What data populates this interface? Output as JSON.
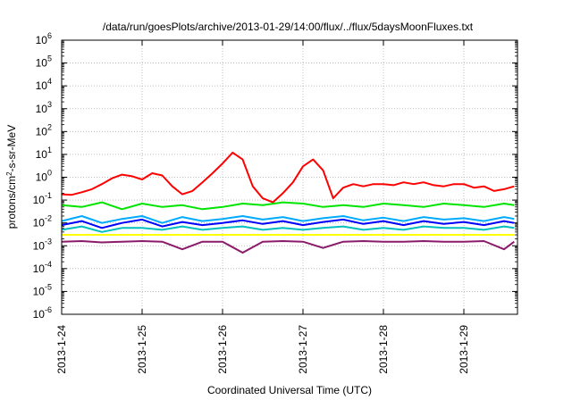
{
  "chart_data": {
    "type": "line",
    "title": "/data/run/goesPlots/archive/2013-01-29/14:00/flux/../flux/5daysMoonFluxes.txt",
    "xlabel": "Coordinated Universal Time (UTC)",
    "ylabel": {
      "pre": "protons/cm",
      "sup": "2",
      "post": "-s-sr-MeV"
    },
    "yscale": "log",
    "ylim": [
      1e-06,
      1000000.0
    ],
    "xlim": [
      "2013-01-24T00:00",
      "2013-01-29T16:00"
    ],
    "grid": true,
    "y_tick_labels": [
      {
        "value": 1e-06,
        "base": "10",
        "exp": "-6"
      },
      {
        "value": 1e-05,
        "base": "10",
        "exp": "-5"
      },
      {
        "value": 0.0001,
        "base": "10",
        "exp": "-4"
      },
      {
        "value": 0.001,
        "base": "10",
        "exp": "-3"
      },
      {
        "value": 0.01,
        "base": "10",
        "exp": "-2"
      },
      {
        "value": 0.1,
        "base": "10",
        "exp": "-1"
      },
      {
        "value": 1.0,
        "base": "10",
        "exp": "0"
      },
      {
        "value": 10.0,
        "base": "10",
        "exp": "1"
      },
      {
        "value": 100.0,
        "base": "10",
        "exp": "2"
      },
      {
        "value": 1000.0,
        "base": "10",
        "exp": "3"
      },
      {
        "value": 10000.0,
        "base": "10",
        "exp": "4"
      },
      {
        "value": 100000.0,
        "base": "10",
        "exp": "5"
      },
      {
        "value": 1000000.0,
        "base": "10",
        "exp": "6"
      }
    ],
    "x_tick_labels": [
      {
        "value": "2013-01-24T00:00",
        "label": "2013-1-24"
      },
      {
        "value": "2013-01-25T00:00",
        "label": "2013-1-25"
      },
      {
        "value": "2013-01-26T00:00",
        "label": "2013-1-26"
      },
      {
        "value": "2013-01-27T00:00",
        "label": "2013-1-27"
      },
      {
        "value": "2013-01-28T00:00",
        "label": "2013-1-28"
      },
      {
        "value": "2013-01-29T00:00",
        "label": "2013-1-29"
      }
    ],
    "series": [
      {
        "color": "#ff0000",
        "x": [
          "2013-01-24T00:00",
          "2013-01-24T03:00",
          "2013-01-24T06:00",
          "2013-01-24T09:00",
          "2013-01-24T12:00",
          "2013-01-24T15:00",
          "2013-01-24T18:00",
          "2013-01-24T21:00",
          "2013-01-25T00:00",
          "2013-01-25T03:00",
          "2013-01-25T06:00",
          "2013-01-25T09:00",
          "2013-01-25T12:00",
          "2013-01-25T15:00",
          "2013-01-25T18:00",
          "2013-01-25T21:00",
          "2013-01-26T00:00",
          "2013-01-26T03:00",
          "2013-01-26T06:00",
          "2013-01-26T09:00",
          "2013-01-26T12:00",
          "2013-01-26T15:00",
          "2013-01-26T18:00",
          "2013-01-26T21:00",
          "2013-01-27T00:00",
          "2013-01-27T03:00",
          "2013-01-27T06:00",
          "2013-01-27T09:00",
          "2013-01-27T12:00",
          "2013-01-27T15:00",
          "2013-01-27T18:00",
          "2013-01-27T21:00",
          "2013-01-28T00:00",
          "2013-01-28T03:00",
          "2013-01-28T06:00",
          "2013-01-28T09:00",
          "2013-01-28T12:00",
          "2013-01-28T15:00",
          "2013-01-28T18:00",
          "2013-01-28T21:00",
          "2013-01-29T00:00",
          "2013-01-29T03:00",
          "2013-01-29T06:00",
          "2013-01-29T09:00",
          "2013-01-29T12:00",
          "2013-01-29T15:00"
        ],
        "values": [
          0.18,
          0.17,
          0.22,
          0.3,
          0.5,
          0.9,
          1.3,
          1.1,
          0.8,
          1.5,
          1.2,
          0.4,
          0.18,
          0.25,
          0.6,
          1.5,
          4,
          12,
          6,
          0.4,
          0.12,
          0.08,
          0.2,
          0.6,
          3,
          6,
          2,
          0.12,
          0.35,
          0.5,
          0.4,
          0.5,
          0.5,
          0.45,
          0.6,
          0.5,
          0.6,
          0.45,
          0.4,
          0.5,
          0.5,
          0.35,
          0.4,
          0.25,
          0.3,
          0.4
        ]
      },
      {
        "color": "#00e400",
        "x": [
          "2013-01-24T00:00",
          "2013-01-24T06:00",
          "2013-01-24T12:00",
          "2013-01-24T18:00",
          "2013-01-25T00:00",
          "2013-01-25T06:00",
          "2013-01-25T12:00",
          "2013-01-25T18:00",
          "2013-01-26T00:00",
          "2013-01-26T06:00",
          "2013-01-26T12:00",
          "2013-01-26T18:00",
          "2013-01-27T00:00",
          "2013-01-27T06:00",
          "2013-01-27T12:00",
          "2013-01-27T18:00",
          "2013-01-28T00:00",
          "2013-01-28T06:00",
          "2013-01-28T12:00",
          "2013-01-28T18:00",
          "2013-01-29T00:00",
          "2013-01-29T06:00",
          "2013-01-29T12:00",
          "2013-01-29T15:00"
        ],
        "values": [
          0.06,
          0.05,
          0.08,
          0.04,
          0.07,
          0.05,
          0.06,
          0.04,
          0.05,
          0.07,
          0.06,
          0.08,
          0.07,
          0.05,
          0.06,
          0.05,
          0.07,
          0.06,
          0.05,
          0.07,
          0.06,
          0.05,
          0.07,
          0.06
        ]
      },
      {
        "color": "#00aaff",
        "x": [
          "2013-01-24T00:00",
          "2013-01-24T06:00",
          "2013-01-24T12:00",
          "2013-01-24T18:00",
          "2013-01-25T00:00",
          "2013-01-25T06:00",
          "2013-01-25T12:00",
          "2013-01-25T18:00",
          "2013-01-26T00:00",
          "2013-01-26T06:00",
          "2013-01-26T12:00",
          "2013-01-26T18:00",
          "2013-01-27T00:00",
          "2013-01-27T06:00",
          "2013-01-27T12:00",
          "2013-01-27T18:00",
          "2013-01-28T00:00",
          "2013-01-28T06:00",
          "2013-01-28T12:00",
          "2013-01-28T18:00",
          "2013-01-29T00:00",
          "2013-01-29T06:00",
          "2013-01-29T12:00",
          "2013-01-29T15:00"
        ],
        "values": [
          0.012,
          0.02,
          0.01,
          0.015,
          0.02,
          0.01,
          0.018,
          0.012,
          0.015,
          0.02,
          0.014,
          0.018,
          0.012,
          0.016,
          0.02,
          0.013,
          0.017,
          0.012,
          0.018,
          0.014,
          0.016,
          0.012,
          0.018,
          0.015
        ]
      },
      {
        "color": "#0000ff",
        "x": [
          "2013-01-24T00:00",
          "2013-01-24T06:00",
          "2013-01-24T12:00",
          "2013-01-24T18:00",
          "2013-01-25T00:00",
          "2013-01-25T06:00",
          "2013-01-25T12:00",
          "2013-01-25T18:00",
          "2013-01-26T00:00",
          "2013-01-26T06:00",
          "2013-01-26T12:00",
          "2013-01-26T18:00",
          "2013-01-27T00:00",
          "2013-01-27T06:00",
          "2013-01-27T12:00",
          "2013-01-27T18:00",
          "2013-01-28T00:00",
          "2013-01-28T06:00",
          "2013-01-28T12:00",
          "2013-01-28T18:00",
          "2013-01-29T00:00",
          "2013-01-29T06:00",
          "2013-01-29T12:00",
          "2013-01-29T15:00"
        ],
        "values": [
          0.008,
          0.012,
          0.006,
          0.01,
          0.014,
          0.007,
          0.011,
          0.008,
          0.01,
          0.013,
          0.009,
          0.012,
          0.008,
          0.011,
          0.014,
          0.009,
          0.012,
          0.008,
          0.012,
          0.009,
          0.011,
          0.008,
          0.012,
          0.01
        ]
      },
      {
        "color": "#00bfbf",
        "x": [
          "2013-01-24T00:00",
          "2013-01-24T06:00",
          "2013-01-24T12:00",
          "2013-01-24T18:00",
          "2013-01-25T00:00",
          "2013-01-25T06:00",
          "2013-01-25T12:00",
          "2013-01-25T18:00",
          "2013-01-26T00:00",
          "2013-01-26T06:00",
          "2013-01-26T12:00",
          "2013-01-26T18:00",
          "2013-01-27T00:00",
          "2013-01-27T06:00",
          "2013-01-27T12:00",
          "2013-01-27T18:00",
          "2013-01-28T00:00",
          "2013-01-28T06:00",
          "2013-01-28T12:00",
          "2013-01-28T18:00",
          "2013-01-29T00:00",
          "2013-01-29T06:00",
          "2013-01-29T12:00",
          "2013-01-29T15:00"
        ],
        "values": [
          0.005,
          0.007,
          0.004,
          0.006,
          0.006,
          0.005,
          0.007,
          0.005,
          0.006,
          0.007,
          0.005,
          0.006,
          0.005,
          0.006,
          0.007,
          0.005,
          0.006,
          0.005,
          0.007,
          0.006,
          0.006,
          0.005,
          0.007,
          0.006
        ]
      },
      {
        "color": "#ffff00",
        "x": [
          "2013-01-24T00:00",
          "2013-01-25T00:00",
          "2013-01-26T00:00",
          "2013-01-27T00:00",
          "2013-01-28T00:00",
          "2013-01-29T00:00",
          "2013-01-29T15:00"
        ],
        "values": [
          0.003,
          0.003,
          0.003,
          0.003,
          0.003,
          0.003,
          0.003
        ]
      },
      {
        "color": "#8b1a6b",
        "x": [
          "2013-01-24T00:00",
          "2013-01-24T06:00",
          "2013-01-24T12:00",
          "2013-01-24T18:00",
          "2013-01-25T00:00",
          "2013-01-25T06:00",
          "2013-01-25T12:00",
          "2013-01-25T18:00",
          "2013-01-26T00:00",
          "2013-01-26T06:00",
          "2013-01-26T12:00",
          "2013-01-26T18:00",
          "2013-01-27T00:00",
          "2013-01-27T06:00",
          "2013-01-27T12:00",
          "2013-01-27T18:00",
          "2013-01-28T00:00",
          "2013-01-28T06:00",
          "2013-01-28T12:00",
          "2013-01-28T18:00",
          "2013-01-29T00:00",
          "2013-01-29T06:00",
          "2013-01-29T12:00",
          "2013-01-29T15:00"
        ],
        "values": [
          0.0015,
          0.0016,
          0.0014,
          0.0015,
          0.0016,
          0.0015,
          0.0007,
          0.0015,
          0.0015,
          0.0005,
          0.0015,
          0.0016,
          0.0015,
          0.0008,
          0.0015,
          0.0016,
          0.0015,
          0.0015,
          0.0016,
          0.0015,
          0.0015,
          0.0016,
          0.0007,
          0.0015
        ]
      }
    ]
  }
}
